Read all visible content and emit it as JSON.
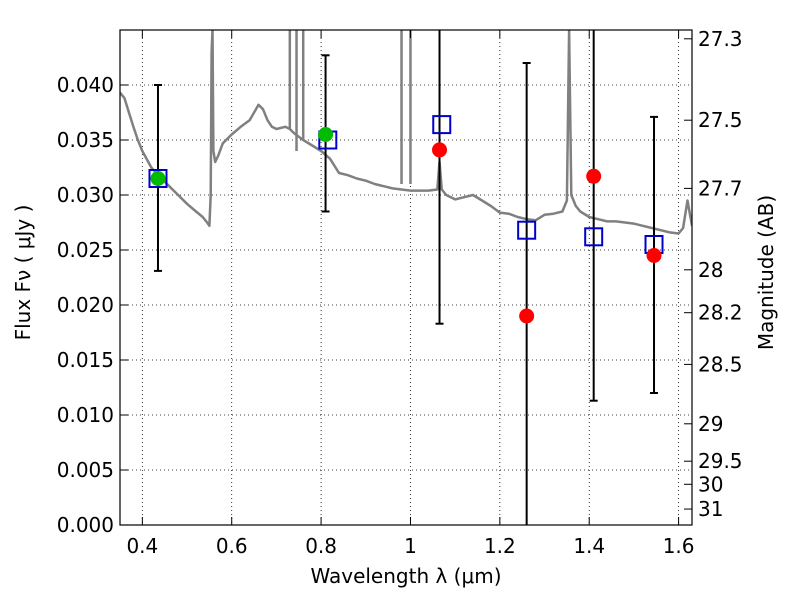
{
  "chart_data": {
    "type": "scatter",
    "xlabel": "Wavelength  λ (μm)",
    "ylabel": "Flux  Fν  ( μJy )",
    "ylabel_right": "Magnitude (AB)",
    "xlim": [
      0.35,
      1.63
    ],
    "ylim": [
      0.0,
      0.045
    ],
    "grid": true,
    "x_ticks": [
      {
        "value": 0.4,
        "label": "0.4"
      },
      {
        "value": 0.6,
        "label": "0.6"
      },
      {
        "value": 0.8,
        "label": "0.8"
      },
      {
        "value": 1.0,
        "label": "1"
      },
      {
        "value": 1.2,
        "label": "1.2"
      },
      {
        "value": 1.4,
        "label": "1.4"
      },
      {
        "value": 1.6,
        "label": "1.6"
      }
    ],
    "y_ticks": [
      {
        "value": 0.0,
        "label": "0.000"
      },
      {
        "value": 0.005,
        "label": "0.005"
      },
      {
        "value": 0.01,
        "label": "0.010"
      },
      {
        "value": 0.015,
        "label": "0.015"
      },
      {
        "value": 0.02,
        "label": "0.020"
      },
      {
        "value": 0.025,
        "label": "0.025"
      },
      {
        "value": 0.03,
        "label": "0.030"
      },
      {
        "value": 0.035,
        "label": "0.035"
      },
      {
        "value": 0.04,
        "label": "0.040"
      }
    ],
    "right_ticks": [
      {
        "label": "27.3",
        "flux": 0.0442
      },
      {
        "label": "27.5",
        "flux": 0.0368
      },
      {
        "label": "27.7",
        "flux": 0.0306
      },
      {
        "label": "28",
        "flux": 0.0232
      },
      {
        "label": "28.2",
        "flux": 0.0193
      },
      {
        "label": "28.5",
        "flux": 0.0146
      },
      {
        "label": "29",
        "flux": 0.0092
      },
      {
        "label": "29.5",
        "flux": 0.0058
      },
      {
        "label": "30",
        "flux": 0.0037
      },
      {
        "label": "31",
        "flux": 0.00145
      }
    ],
    "observed": {
      "color": "#000000",
      "points": [
        {
          "x": 0.435,
          "y": 0.0315,
          "lo": 0.0231,
          "hi": 0.04
        },
        {
          "x": 0.81,
          "y": 0.0355,
          "lo": 0.0285,
          "hi": 0.0427
        },
        {
          "x": 1.065,
          "y": 0.0341,
          "lo": 0.0183,
          "hi": 0.045
        },
        {
          "x": 1.26,
          "y": 0.019,
          "lo": 0.0,
          "hi": 0.042
        },
        {
          "x": 1.41,
          "y": 0.0317,
          "lo": 0.0113,
          "hi": 0.045
        },
        {
          "x": 1.545,
          "y": 0.0245,
          "lo": 0.012,
          "hi": 0.0371
        }
      ]
    },
    "observed_colors": [
      "#00bb00",
      "#00bb00",
      "#ff0000",
      "#ff0000",
      "#ff0000",
      "#ff0000"
    ],
    "model_squares": {
      "color": "#0000cc",
      "points": [
        {
          "x": 0.435,
          "y": 0.0315
        },
        {
          "x": 0.815,
          "y": 0.035
        },
        {
          "x": 1.07,
          "y": 0.0364
        },
        {
          "x": 1.26,
          "y": 0.0268
        },
        {
          "x": 1.41,
          "y": 0.0262
        },
        {
          "x": 1.545,
          "y": 0.0255
        }
      ]
    },
    "sed_model": {
      "color": "#808080",
      "points": [
        [
          0.35,
          0.0393
        ],
        [
          0.36,
          0.0388
        ],
        [
          0.37,
          0.0375
        ],
        [
          0.38,
          0.0362
        ],
        [
          0.39,
          0.035
        ],
        [
          0.4,
          0.034
        ],
        [
          0.42,
          0.0325
        ],
        [
          0.44,
          0.0316
        ],
        [
          0.46,
          0.0308
        ],
        [
          0.48,
          0.03
        ],
        [
          0.5,
          0.0292
        ],
        [
          0.52,
          0.0285
        ],
        [
          0.535,
          0.028
        ],
        [
          0.545,
          0.0275
        ],
        [
          0.55,
          0.0272
        ],
        [
          0.553,
          0.03
        ],
        [
          0.555,
          0.043
        ],
        [
          0.557,
          0.045
        ],
        [
          0.559,
          0.034
        ],
        [
          0.563,
          0.033
        ],
        [
          0.57,
          0.0336
        ],
        [
          0.58,
          0.0347
        ],
        [
          0.6,
          0.0355
        ],
        [
          0.62,
          0.0362
        ],
        [
          0.64,
          0.0368
        ],
        [
          0.65,
          0.0375
        ],
        [
          0.66,
          0.0382
        ],
        [
          0.67,
          0.0378
        ],
        [
          0.68,
          0.0368
        ],
        [
          0.69,
          0.0362
        ],
        [
          0.7,
          0.036
        ],
        [
          0.72,
          0.0362
        ],
        [
          0.73,
          0.036
        ],
        [
          0.74,
          0.0356
        ],
        [
          0.76,
          0.035
        ],
        [
          0.78,
          0.0345
        ],
        [
          0.8,
          0.034
        ],
        [
          0.82,
          0.0333
        ],
        [
          0.84,
          0.032
        ],
        [
          0.86,
          0.0318
        ],
        [
          0.88,
          0.0315
        ],
        [
          0.9,
          0.0313
        ],
        [
          0.92,
          0.031
        ],
        [
          0.94,
          0.0308
        ],
        [
          0.96,
          0.0306
        ],
        [
          0.98,
          0.0305
        ],
        [
          1.0,
          0.0304
        ],
        [
          1.02,
          0.0304
        ],
        [
          1.04,
          0.0304
        ],
        [
          1.06,
          0.0305
        ],
        [
          1.065,
          0.033
        ],
        [
          1.07,
          0.0305
        ],
        [
          1.08,
          0.03
        ],
        [
          1.1,
          0.0296
        ],
        [
          1.12,
          0.0298
        ],
        [
          1.14,
          0.03
        ],
        [
          1.16,
          0.0295
        ],
        [
          1.18,
          0.029
        ],
        [
          1.2,
          0.0284
        ],
        [
          1.22,
          0.0283
        ],
        [
          1.24,
          0.028
        ],
        [
          1.26,
          0.0278
        ],
        [
          1.28,
          0.0277
        ],
        [
          1.3,
          0.0282
        ],
        [
          1.32,
          0.0283
        ],
        [
          1.34,
          0.0285
        ],
        [
          1.35,
          0.0295
        ],
        [
          1.355,
          0.045
        ],
        [
          1.36,
          0.03
        ],
        [
          1.37,
          0.029
        ],
        [
          1.38,
          0.0285
        ],
        [
          1.4,
          0.028
        ],
        [
          1.42,
          0.0278
        ],
        [
          1.44,
          0.0276
        ],
        [
          1.46,
          0.0276
        ],
        [
          1.48,
          0.0275
        ],
        [
          1.5,
          0.0274
        ],
        [
          1.52,
          0.0272
        ],
        [
          1.54,
          0.027
        ],
        [
          1.56,
          0.0268
        ],
        [
          1.58,
          0.0266
        ],
        [
          1.6,
          0.0265
        ],
        [
          1.61,
          0.027
        ],
        [
          1.62,
          0.0295
        ],
        [
          1.63,
          0.0272
        ]
      ]
    }
  }
}
